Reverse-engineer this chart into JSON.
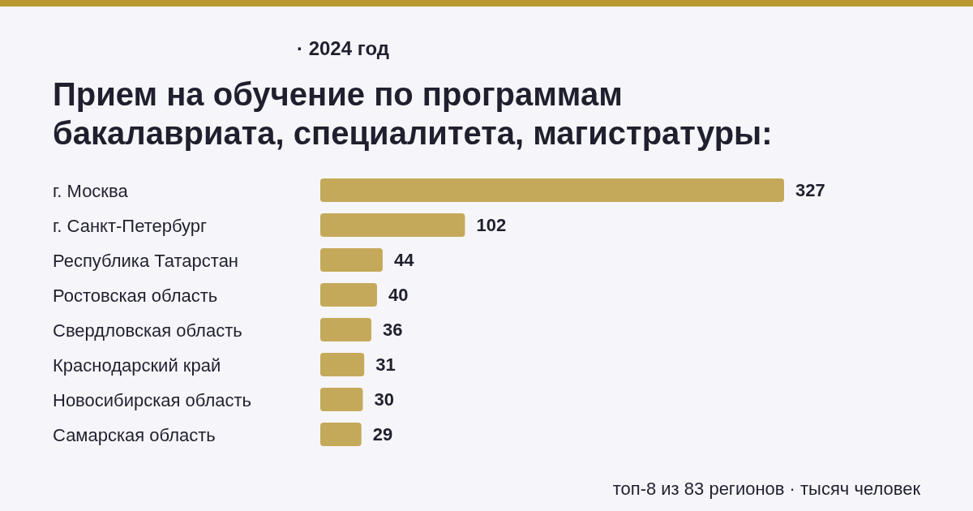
{
  "chart_data": {
    "type": "bar",
    "orientation": "horizontal",
    "title": "Прием на обучение по программам\nбакалавриата, специалитета, магистратуры:",
    "subtitle": "· 2024 год",
    "annotations": [
      "топ-8 из 83 регионов · тысяч человек"
    ],
    "categories": [
      "г. Москва",
      "г. Санкт-Петербург",
      "Республика Татарстан",
      "Ростовская область",
      "Свердловская область",
      "Краснодарский край",
      "Новосибирская область",
      "Самарская область"
    ],
    "values": [
      327,
      102,
      44,
      40,
      36,
      31,
      30,
      29
    ],
    "color": "#c5a95a",
    "data_labels": true
  }
}
